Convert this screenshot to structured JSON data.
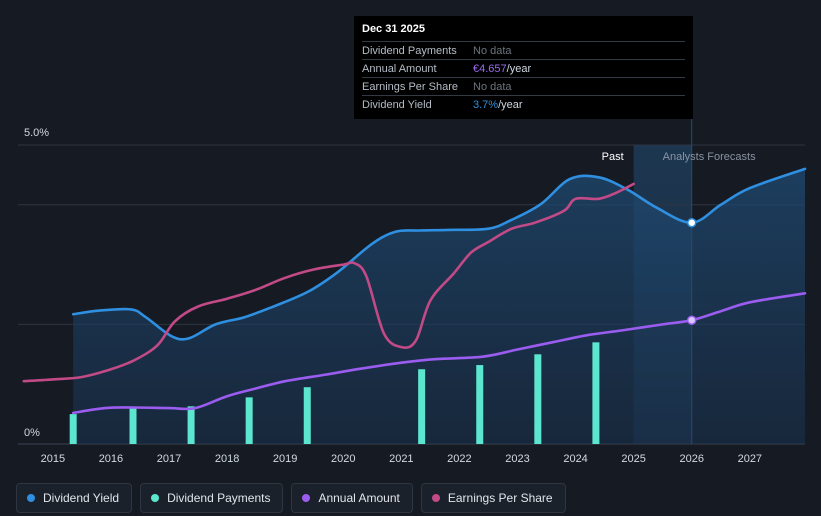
{
  "chart_data": {
    "type": "line",
    "y_labels": {
      "top": "5.0%",
      "bottom": "0%"
    },
    "ylim": [
      0,
      5.0
    ],
    "xlim": [
      2014.4,
      2027.95
    ],
    "x_ticks": [
      "2015",
      "2016",
      "2017",
      "2018",
      "2019",
      "2020",
      "2021",
      "2022",
      "2023",
      "2024",
      "2025",
      "2026",
      "2027"
    ],
    "past_label": "Past",
    "forecast_label": "Analysts Forecasts",
    "past_end": 2025.0,
    "forecast_start": 2026.0,
    "series": [
      {
        "name": "Dividend Yield",
        "color": "#2f8fe0",
        "fill": true,
        "points": [
          [
            2015.35,
            2.17
          ],
          [
            2015.8,
            2.23
          ],
          [
            2016.35,
            2.25
          ],
          [
            2016.6,
            2.12
          ],
          [
            2017.05,
            1.8
          ],
          [
            2017.35,
            1.77
          ],
          [
            2017.8,
            2.0
          ],
          [
            2018.3,
            2.12
          ],
          [
            2018.8,
            2.3
          ],
          [
            2019.4,
            2.55
          ],
          [
            2019.9,
            2.87
          ],
          [
            2020.5,
            3.35
          ],
          [
            2020.9,
            3.55
          ],
          [
            2021.3,
            3.57
          ],
          [
            2021.8,
            3.58
          ],
          [
            2022.5,
            3.6
          ],
          [
            2022.9,
            3.75
          ],
          [
            2023.4,
            4.01
          ],
          [
            2023.9,
            4.43
          ],
          [
            2024.4,
            4.46
          ],
          [
            2024.9,
            4.25
          ],
          [
            2025.4,
            3.95
          ],
          [
            2026.0,
            3.7
          ],
          [
            2026.5,
            4.0
          ],
          [
            2027.0,
            4.28
          ],
          [
            2027.95,
            4.6
          ]
        ],
        "marker": [
          2026.0,
          3.7
        ]
      },
      {
        "name": "Annual Amount",
        "color": "#9b5cf0",
        "fill": false,
        "points": [
          [
            2015.35,
            0.52
          ],
          [
            2015.9,
            0.6
          ],
          [
            2016.4,
            0.61
          ],
          [
            2017.0,
            0.6
          ],
          [
            2017.45,
            0.6
          ],
          [
            2018.0,
            0.8
          ],
          [
            2018.5,
            0.93
          ],
          [
            2019.0,
            1.05
          ],
          [
            2019.7,
            1.16
          ],
          [
            2020.3,
            1.26
          ],
          [
            2021.0,
            1.36
          ],
          [
            2021.6,
            1.42
          ],
          [
            2022.4,
            1.46
          ],
          [
            2023.0,
            1.58
          ],
          [
            2023.6,
            1.7
          ],
          [
            2024.2,
            1.82
          ],
          [
            2024.8,
            1.9
          ],
          [
            2025.5,
            2.0
          ],
          [
            2026.0,
            2.07
          ],
          [
            2026.5,
            2.22
          ],
          [
            2027.0,
            2.37
          ],
          [
            2027.95,
            2.52
          ]
        ],
        "marker": [
          2026.0,
          2.07
        ]
      },
      {
        "name": "Earnings Per Share",
        "color": "#c24a86",
        "fill": false,
        "points": [
          [
            2014.5,
            1.05
          ],
          [
            2015.0,
            1.08
          ],
          [
            2015.5,
            1.12
          ],
          [
            2016.0,
            1.25
          ],
          [
            2016.4,
            1.4
          ],
          [
            2016.8,
            1.65
          ],
          [
            2017.1,
            2.05
          ],
          [
            2017.5,
            2.3
          ],
          [
            2018.0,
            2.43
          ],
          [
            2018.5,
            2.58
          ],
          [
            2019.0,
            2.78
          ],
          [
            2019.5,
            2.92
          ],
          [
            2020.0,
            3.0
          ],
          [
            2020.2,
            3.02
          ],
          [
            2020.4,
            2.8
          ],
          [
            2020.7,
            1.85
          ],
          [
            2021.0,
            1.62
          ],
          [
            2021.25,
            1.73
          ],
          [
            2021.5,
            2.4
          ],
          [
            2021.9,
            2.85
          ],
          [
            2022.2,
            3.2
          ],
          [
            2022.5,
            3.38
          ],
          [
            2022.9,
            3.6
          ],
          [
            2023.3,
            3.7
          ],
          [
            2023.8,
            3.9
          ],
          [
            2024.0,
            4.1
          ],
          [
            2024.4,
            4.1
          ],
          [
            2024.7,
            4.2
          ],
          [
            2025.0,
            4.35
          ]
        ],
        "marker": null
      }
    ],
    "bars": {
      "name": "Dividend Payments",
      "color": "#5de6cf",
      "x": [
        2015.35,
        2016.38,
        2017.38,
        2018.38,
        2019.38,
        2021.35,
        2022.35,
        2023.35,
        2024.35
      ],
      "values": [
        0.5,
        0.62,
        0.63,
        0.78,
        0.95,
        1.25,
        1.32,
        1.5,
        1.7
      ]
    },
    "tooltip": {
      "title": "Dec 31 2025",
      "rows": [
        {
          "key": "Dividend Payments",
          "value": "No data",
          "unit": "",
          "accent": ""
        },
        {
          "key": "Annual Amount",
          "value": "€4.657",
          "unit": "/year",
          "accent": "purple"
        },
        {
          "key": "Earnings Per Share",
          "value": "No data",
          "unit": "",
          "accent": ""
        },
        {
          "key": "Dividend Yield",
          "value": "3.7%",
          "unit": "/year",
          "accent": "blue"
        }
      ]
    }
  },
  "legend": [
    {
      "label": "Dividend Yield",
      "color": "#2f8fe0"
    },
    {
      "label": "Dividend Payments",
      "color": "#5de6cf"
    },
    {
      "label": "Annual Amount",
      "color": "#9b5cf0"
    },
    {
      "label": "Earnings Per Share",
      "color": "#c24a86"
    }
  ]
}
